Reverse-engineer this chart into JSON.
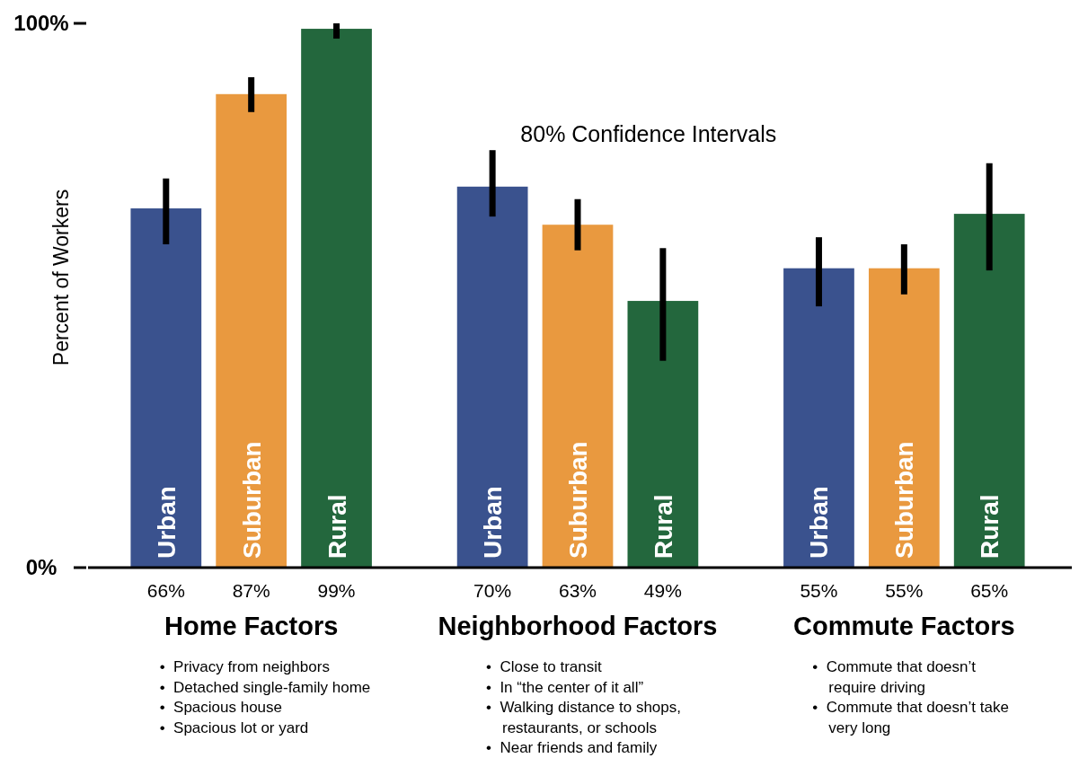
{
  "chart_data": {
    "type": "bar",
    "ylabel": "Percent of Workers",
    "categories": [
      "Home Factors",
      "Neighborhood Factors",
      "Commute Factors"
    ],
    "series": [
      {
        "name": "Urban",
        "color": "#3a528e",
        "values": [
          66,
          70,
          55
        ],
        "value_labels": [
          "66%",
          "70%",
          "55%"
        ],
        "errors": [
          [
            59.4,
            71.5
          ],
          [
            64.5,
            76.7
          ],
          [
            48,
            60.7
          ]
        ]
      },
      {
        "name": "Suburban",
        "color": "#e9993f",
        "values": [
          87,
          63,
          55
        ],
        "value_labels": [
          "87%",
          "63%",
          "55%"
        ],
        "errors": [
          [
            83.7,
            90.1
          ],
          [
            58.3,
            67.7
          ],
          [
            50.2,
            59.4
          ]
        ]
      },
      {
        "name": "Rural",
        "color": "#23673d",
        "values": [
          99,
          49,
          65
        ],
        "value_labels": [
          "99%",
          "49%",
          "65%"
        ],
        "errors": [
          [
            97.2,
            100
          ],
          [
            38,
            58.7
          ],
          [
            54.6,
            74.3
          ]
        ]
      }
    ],
    "ylim": [
      0,
      100
    ],
    "yticks": [
      {
        "value": 0,
        "label": "0%"
      },
      {
        "value": 100,
        "label": "100%"
      }
    ],
    "annotations": [
      "80% Confidence Intervals",
      "• Privacy from neighbors\n• Detached single-family home\n• Spacious house\n• Spacious lot or yard",
      "• Close to transit\n• In “the center of it all”\n• Walking distance to shops, restaurants, or schools\n• Near friends and family",
      "• Commute that doesn’t require driving\n• Commute that doesn’t take very long"
    ]
  }
}
